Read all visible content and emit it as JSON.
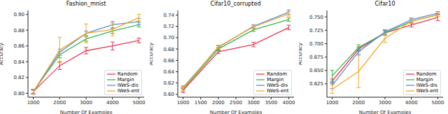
{
  "chart_data": [
    {
      "type": "line",
      "title": "Fashion_mnist",
      "x_label": "Number Of Examples",
      "y_label": "Accuracy",
      "x": [
        1000,
        2000,
        3000,
        4000,
        5000
      ],
      "xlim": [
        800,
        5200
      ],
      "xticks": [
        1000,
        2000,
        3000,
        4000,
        5000
      ],
      "ylim": [
        0.795,
        0.905
      ],
      "yticks": [
        {
          "value": 0.8,
          "label": "0.80"
        },
        {
          "value": 0.82,
          "label": "0.82"
        },
        {
          "value": 0.84,
          "label": "0.84"
        },
        {
          "value": 0.86,
          "label": "0.86"
        },
        {
          "value": 0.88,
          "label": "0.88"
        },
        {
          "value": 0.9,
          "label": "0.90"
        }
      ],
      "legend": "lower right",
      "series": [
        {
          "name": "Random",
          "color": "#e8384f",
          "values": [
            0.802,
            0.835,
            0.854,
            0.86,
            0.867
          ],
          "errors": [
            0.003,
            0.005,
            0.004,
            0.005,
            0.003
          ]
        },
        {
          "name": "Margin",
          "color": "#3cb44b",
          "values": [
            0.802,
            0.849,
            0.869,
            0.879,
            0.887
          ],
          "errors": [
            0.002,
            0.004,
            0.003,
            0.003,
            0.003
          ]
        },
        {
          "name": "IWeS-dis",
          "color": "#5b8bd9",
          "values": [
            0.802,
            0.852,
            0.876,
            0.887,
            0.891
          ],
          "errors": [
            0.002,
            0.004,
            0.003,
            0.004,
            0.004
          ]
        },
        {
          "name": "IWeS-ent",
          "color": "#f5a623",
          "values": [
            0.802,
            0.855,
            0.876,
            0.881,
            0.896
          ],
          "errors": [
            0.002,
            0.016,
            0.012,
            0.008,
            0.004
          ]
        }
      ]
    },
    {
      "type": "line",
      "title": "Cifar10_corrupted",
      "x_label": "Number Of Examples",
      "y_label": "Accuracy",
      "x": [
        1000,
        2000,
        3000,
        4000
      ],
      "xlim": [
        850,
        4150
      ],
      "xticks": [
        1000,
        1500,
        2000,
        2500,
        3000,
        3500,
        4000
      ],
      "ylim": [
        0.595,
        0.748
      ],
      "yticks": [
        {
          "value": 0.6,
          "label": "0.60"
        },
        {
          "value": 0.62,
          "label": "0.62"
        },
        {
          "value": 0.64,
          "label": "0.64"
        },
        {
          "value": 0.66,
          "label": "0.66"
        },
        {
          "value": 0.68,
          "label": "0.68"
        },
        {
          "value": 0.7,
          "label": "0.70"
        },
        {
          "value": 0.72,
          "label": "0.72"
        },
        {
          "value": 0.74,
          "label": "0.74"
        }
      ],
      "legend": "lower right",
      "series": [
        {
          "name": "Random",
          "color": "#e8384f",
          "values": [
            0.607,
            0.675,
            0.688,
            0.718
          ],
          "errors": [
            0.004,
            0.003,
            0.004,
            0.004
          ]
        },
        {
          "name": "Margin",
          "color": "#3cb44b",
          "values": [
            0.609,
            0.68,
            0.714,
            0.732
          ],
          "errors": [
            0.003,
            0.003,
            0.003,
            0.003
          ]
        },
        {
          "name": "IWeS-dis",
          "color": "#5b8bd9",
          "values": [
            0.612,
            0.683,
            0.72,
            0.745
          ],
          "errors": [
            0.003,
            0.003,
            0.003,
            0.004
          ]
        },
        {
          "name": "IWeS-ent",
          "color": "#f5a623",
          "values": [
            0.61,
            0.684,
            0.719,
            0.742
          ],
          "errors": [
            0.004,
            0.003,
            0.003,
            0.004
          ]
        }
      ]
    },
    {
      "type": "line",
      "title": "Cifar10",
      "x_label": "Number Of Examples",
      "y_label": "Accuracy",
      "x": [
        1000,
        2000,
        3000,
        4000,
        5000
      ],
      "xlim": [
        800,
        5200
      ],
      "xticks": [
        1000,
        2000,
        3000,
        4000,
        5000
      ],
      "ylim": [
        0.6,
        0.762
      ],
      "yticks": [
        {
          "value": 0.625,
          "label": "0.625"
        },
        {
          "value": 0.65,
          "label": "0.650"
        },
        {
          "value": 0.675,
          "label": "0.675"
        },
        {
          "value": 0.7,
          "label": "0.700"
        },
        {
          "value": 0.725,
          "label": "0.725"
        },
        {
          "value": 0.75,
          "label": "0.750"
        }
      ],
      "legend": "lower right",
      "series": [
        {
          "name": "Random",
          "color": "#e8384f",
          "values": [
            0.63,
            0.69,
            0.72,
            0.735,
            0.749
          ],
          "errors": [
            0.004,
            0.004,
            0.004,
            0.004,
            0.006
          ]
        },
        {
          "name": "Margin",
          "color": "#3cb44b",
          "values": [
            0.64,
            0.693,
            0.72,
            0.742,
            0.754
          ],
          "errors": [
            0.01,
            0.005,
            0.004,
            0.004,
            0.003
          ]
        },
        {
          "name": "IWeS-dis",
          "color": "#5b8bd9",
          "values": [
            0.622,
            0.685,
            0.722,
            0.745,
            0.757
          ],
          "errors": [
            0.006,
            0.005,
            0.004,
            0.003,
            0.003
          ]
        },
        {
          "name": "IWeS-ent",
          "color": "#f5a623",
          "values": [
            0.615,
            0.648,
            0.71,
            0.742,
            0.754
          ],
          "errors": [
            0.008,
            0.03,
            0.008,
            0.004,
            0.003
          ]
        }
      ]
    }
  ]
}
